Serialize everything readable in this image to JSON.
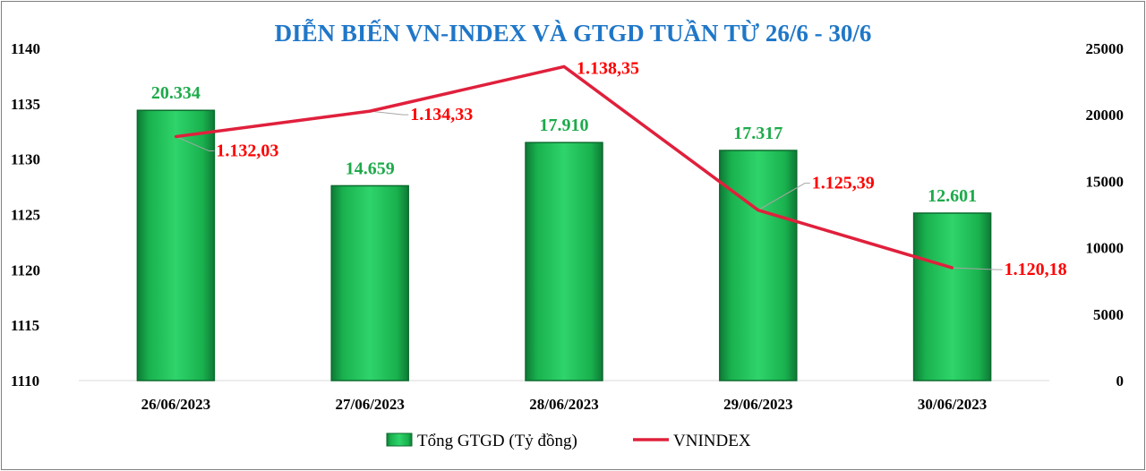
{
  "chart_data": {
    "type": "bar",
    "title": "DIỄN BIẾN VN-INDEX VÀ GTGD TUẦN TỪ 26/6 - 30/6",
    "categories": [
      "26/06/2023",
      "27/06/2023",
      "28/06/2023",
      "29/06/2023",
      "30/06/2023"
    ],
    "left_axis": {
      "ticks": [
        "1140",
        "1135",
        "1130",
        "1125",
        "1120",
        "1115",
        "1110"
      ],
      "ylim": [
        1110,
        1140
      ]
    },
    "right_axis": {
      "ticks": [
        "25000",
        "20000",
        "15000",
        "10000",
        "5000",
        "0"
      ],
      "ylim": [
        0,
        25000
      ]
    },
    "series": [
      {
        "name": "Tổng GTGD (Tỷ đồng)",
        "type": "bar",
        "axis": "right",
        "color": "#1db954",
        "values": [
          20334,
          14659,
          17910,
          17317,
          12601
        ],
        "labels": [
          "20.334",
          "14.659",
          "17.910",
          "17.317",
          "12.601"
        ]
      },
      {
        "name": "VNINDEX",
        "type": "line",
        "axis": "left",
        "color": "#e0203c",
        "values": [
          1132.03,
          1134.33,
          1138.35,
          1125.39,
          1120.18
        ],
        "labels": [
          "1.132,03",
          "1.134,33",
          "1.138,35",
          "1.125,39",
          "1.120,18"
        ]
      }
    ],
    "grid": false,
    "legend_position": "bottom"
  }
}
